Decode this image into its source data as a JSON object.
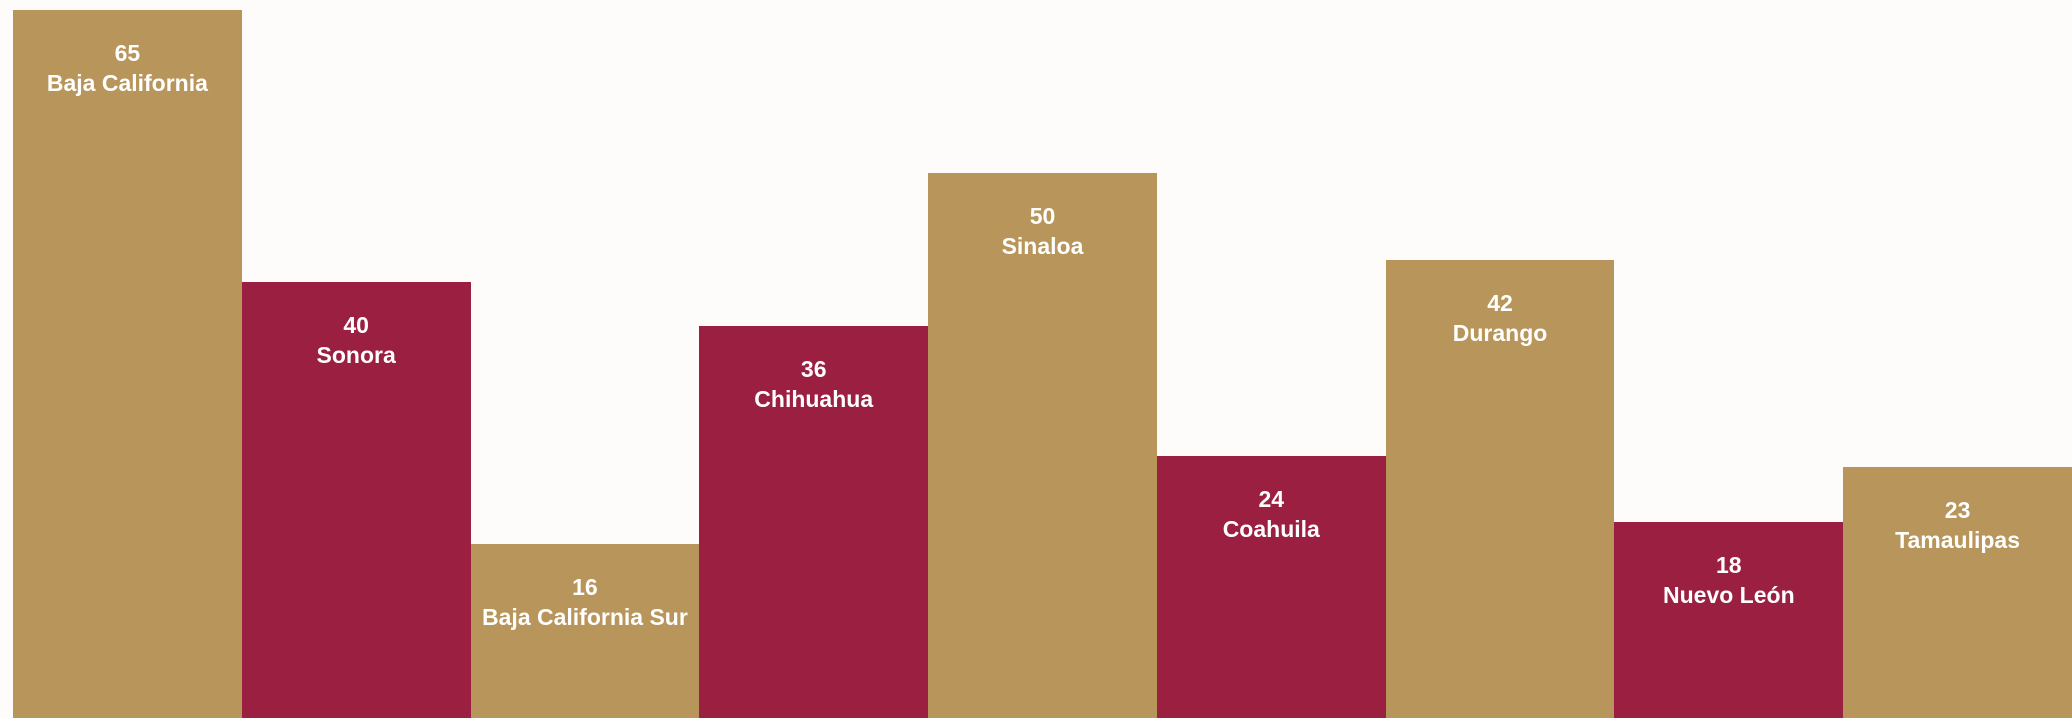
{
  "chart_data": {
    "type": "bar",
    "categories": [
      "Baja California",
      "Sonora",
      "Baja California Sur",
      "Chihuahua",
      "Sinaloa",
      "Coahuila",
      "Durango",
      "Nuevo León",
      "Tamaulipas"
    ],
    "values": [
      65,
      40,
      16,
      36,
      50,
      24,
      42,
      18,
      23
    ],
    "colors": [
      "#b8955a",
      "#9b1f40",
      "#b8955a",
      "#9b1f40",
      "#b8955a",
      "#9b1f40",
      "#b8955a",
      "#9b1f40",
      "#b8955a"
    ]
  }
}
